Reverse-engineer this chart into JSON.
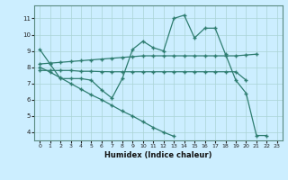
{
  "xlabel": "Humidex (Indice chaleur)",
  "bg_color": "#cceeff",
  "line_color": "#2e7d70",
  "grid_color": "#aad4d4",
  "xlim": [
    -0.5,
    23.5
  ],
  "ylim": [
    3.5,
    11.8
  ],
  "yticks": [
    4,
    5,
    6,
    7,
    8,
    9,
    10,
    11
  ],
  "xticks": [
    0,
    1,
    2,
    3,
    4,
    5,
    6,
    7,
    8,
    9,
    10,
    11,
    12,
    13,
    14,
    15,
    16,
    17,
    18,
    19,
    20,
    21,
    22,
    23
  ],
  "series": {
    "line1": [
      9.1,
      8.2,
      7.3,
      7.3,
      7.3,
      7.2,
      6.6,
      6.1,
      7.3,
      9.1,
      9.6,
      9.2,
      9.0,
      11.0,
      11.2,
      9.8,
      10.4,
      10.4,
      8.8,
      7.2,
      6.4,
      3.8,
      3.8,
      null
    ],
    "line2": [
      8.2,
      8.25,
      8.3,
      8.35,
      8.4,
      8.45,
      8.5,
      8.55,
      8.6,
      8.65,
      8.7,
      8.7,
      8.7,
      8.7,
      8.7,
      8.7,
      8.7,
      8.7,
      8.7,
      8.7,
      8.75,
      8.8,
      null,
      null
    ],
    "line3": [
      7.8,
      7.8,
      7.8,
      7.8,
      7.75,
      7.75,
      7.73,
      7.72,
      7.72,
      7.72,
      7.72,
      7.72,
      7.72,
      7.72,
      7.72,
      7.72,
      7.72,
      7.72,
      7.72,
      7.72,
      7.2,
      null,
      null,
      null
    ],
    "line4": [
      8.0,
      7.7,
      7.35,
      7.0,
      6.65,
      6.3,
      6.0,
      5.65,
      5.3,
      5.0,
      4.65,
      4.3,
      4.0,
      3.75,
      null,
      null,
      null,
      null,
      null,
      null,
      null,
      null,
      null,
      null
    ]
  }
}
